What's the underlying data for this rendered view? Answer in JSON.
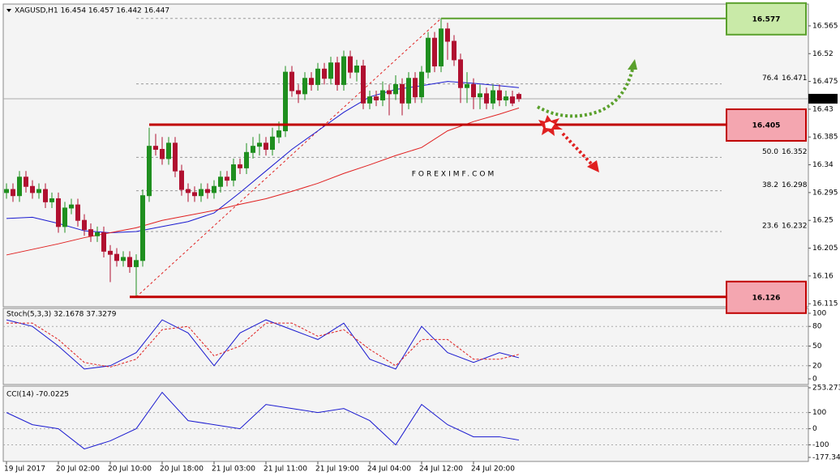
{
  "chart_data": [
    {
      "type": "candlestick",
      "title": "XAGUSD,H1 16.454 16.457 16.442 16.447",
      "categories": [
        "19 Jul 2017",
        null,
        null,
        null,
        null,
        null,
        null,
        null,
        "20 Jul 02:00",
        null,
        null,
        null,
        null,
        null,
        null,
        null,
        "20 Jul 10:00",
        null,
        null,
        null,
        null,
        null,
        null,
        null,
        "20 Jul 18:00",
        null,
        null,
        null,
        null,
        null,
        null,
        null,
        "21 Jul 03:00",
        null,
        null,
        null,
        null,
        null,
        null,
        null,
        "21 Jul 11:00",
        null,
        null,
        null,
        null,
        null,
        null,
        null,
        "21 Jul 19:00",
        null,
        null,
        null,
        null,
        null,
        null,
        null,
        "24 Jul 04:00",
        null,
        null,
        null,
        null,
        null,
        null,
        null,
        "24 Jul 12:00",
        null,
        null,
        null,
        null,
        null,
        null,
        null,
        "24 Jul 20:00",
        null,
        null,
        null,
        null,
        null,
        null,
        null
      ],
      "open": [
        16.295,
        16.3,
        16.29,
        16.32,
        16.305,
        16.295,
        16.3,
        16.28,
        16.285,
        16.24,
        16.27,
        16.275,
        16.25,
        16.235,
        16.225,
        16.23,
        16.2,
        16.195,
        16.185,
        16.19,
        16.175,
        16.185,
        16.29,
        16.37,
        16.365,
        16.35,
        16.375,
        16.33,
        16.3,
        16.295,
        16.29,
        16.3,
        16.295,
        16.305,
        16.32,
        16.315,
        16.34,
        16.335,
        16.36,
        16.37,
        16.375,
        16.365,
        16.385,
        16.395,
        16.49,
        16.46,
        16.455,
        16.48,
        16.47,
        16.495,
        16.48,
        16.505,
        16.47,
        16.515,
        16.49,
        16.5,
        16.44,
        16.45,
        16.445,
        16.46,
        16.455,
        16.47,
        16.44,
        16.48,
        16.45,
        16.49,
        16.545,
        16.5,
        16.56,
        16.54,
        16.51,
        16.465,
        16.47,
        16.45,
        16.455,
        16.44,
        16.46,
        16.445,
        16.45,
        16.454
      ],
      "high": [
        16.31,
        16.31,
        16.33,
        16.33,
        16.315,
        16.31,
        16.31,
        16.295,
        16.295,
        16.28,
        16.285,
        16.285,
        16.26,
        16.245,
        16.24,
        16.24,
        16.21,
        16.205,
        16.2,
        16.2,
        16.195,
        16.3,
        16.4,
        16.39,
        16.385,
        16.385,
        16.385,
        16.34,
        16.31,
        16.305,
        16.31,
        16.31,
        16.315,
        16.33,
        16.33,
        16.35,
        16.35,
        16.375,
        16.385,
        16.39,
        16.385,
        16.4,
        16.41,
        16.5,
        16.5,
        16.47,
        16.49,
        16.49,
        16.505,
        16.505,
        16.515,
        16.515,
        16.525,
        16.525,
        16.51,
        16.51,
        16.46,
        16.46,
        16.475,
        16.47,
        16.485,
        16.48,
        16.49,
        16.49,
        16.5,
        16.555,
        16.555,
        16.577,
        16.57,
        16.55,
        16.52,
        16.49,
        16.48,
        16.47,
        16.465,
        16.47,
        16.47,
        16.46,
        16.46,
        16.457
      ],
      "low": [
        16.285,
        16.28,
        16.28,
        16.295,
        16.285,
        16.285,
        16.27,
        16.27,
        16.23,
        16.23,
        16.26,
        16.24,
        16.225,
        16.215,
        16.215,
        16.19,
        16.15,
        16.175,
        16.175,
        16.165,
        16.126,
        16.175,
        16.28,
        16.355,
        16.34,
        16.34,
        16.32,
        16.29,
        16.28,
        16.28,
        16.28,
        16.285,
        16.285,
        16.295,
        16.305,
        16.305,
        16.325,
        16.325,
        16.35,
        16.355,
        16.355,
        16.355,
        16.375,
        16.385,
        16.45,
        16.44,
        16.445,
        16.46,
        16.46,
        16.47,
        16.47,
        16.46,
        16.46,
        16.48,
        16.475,
        16.43,
        16.43,
        16.435,
        16.435,
        16.42,
        16.445,
        16.42,
        16.43,
        16.44,
        16.44,
        16.48,
        16.49,
        16.49,
        16.51,
        16.5,
        16.44,
        16.44,
        16.43,
        16.43,
        16.43,
        16.43,
        16.435,
        16.435,
        16.435,
        16.442
      ],
      "close": [
        16.3,
        16.29,
        16.32,
        16.305,
        16.295,
        16.3,
        16.28,
        16.285,
        16.24,
        16.27,
        16.275,
        16.25,
        16.235,
        16.225,
        16.23,
        16.2,
        16.195,
        16.185,
        16.19,
        16.175,
        16.185,
        16.29,
        16.37,
        16.365,
        16.35,
        16.375,
        16.33,
        16.3,
        16.295,
        16.29,
        16.3,
        16.295,
        16.305,
        16.32,
        16.315,
        16.34,
        16.335,
        16.36,
        16.37,
        16.375,
        16.365,
        16.385,
        16.395,
        16.49,
        16.46,
        16.455,
        16.48,
        16.47,
        16.495,
        16.48,
        16.505,
        16.47,
        16.515,
        16.49,
        16.5,
        16.44,
        16.45,
        16.445,
        16.46,
        16.455,
        16.47,
        16.44,
        16.48,
        16.45,
        16.49,
        16.545,
        16.5,
        16.56,
        16.54,
        16.51,
        16.465,
        16.47,
        16.45,
        16.455,
        16.44,
        16.46,
        16.445,
        16.45,
        16.44,
        16.447
      ],
      "bull_color": "#1f8f1f",
      "bear_color": "#b01030",
      "x": [
        0,
        4,
        8,
        12,
        16,
        20,
        24,
        28,
        32,
        36,
        40,
        44,
        48,
        52,
        56,
        60,
        64,
        68,
        72,
        76,
        79
      ],
      "series": [
        {
          "color": "#1a1ad0",
          "values": [
            16.253,
            16.255,
            16.245,
            16.233,
            16.23,
            16.232,
            16.24,
            16.248,
            16.262,
            16.295,
            16.33,
            16.365,
            16.395,
            16.425,
            16.45,
            16.462,
            16.468,
            16.475,
            16.472,
            16.468,
            16.465
          ]
        },
        {
          "color": "#e02020",
          "values": [
            16.194,
            16.203,
            16.212,
            16.222,
            16.23,
            16.238,
            16.25,
            16.258,
            16.266,
            16.276,
            16.285,
            16.297,
            16.31,
            16.326,
            16.34,
            16.355,
            16.368,
            16.395,
            16.41,
            16.422,
            16.432
          ]
        }
      ],
      "ylim": [
        16.11,
        16.599
      ],
      "yticks": [
        16.565,
        16.52,
        16.475,
        16.43,
        16.385,
        16.34,
        16.295,
        16.25,
        16.205,
        16.16,
        16.115
      ],
      "last_price": 16.447,
      "levels": [
        {
          "value": 16.577,
          "color": "#5aa02c",
          "fill": "#c9eaa8"
        },
        {
          "value": 16.405,
          "color": "#c00000",
          "fill": "#f4a6b0"
        },
        {
          "value": 16.126,
          "color": "#c00000",
          "fill": "#f4a6b0"
        }
      ],
      "fibonacci": [
        {
          "level": 76.4,
          "value": 16.471
        },
        {
          "level": {
            "value": 50,
            "label": "50.0"
          },
          "value": 16.352
        },
        {
          "level": 38.2,
          "value": 16.298
        },
        {
          "level": 23.6,
          "value": 16.232
        }
      ],
      "watermark": "FOREXIMF.COM"
    },
    {
      "type": "line",
      "title": "Stoch(5,3,3) 32.1678 37.3279",
      "x": [
        0,
        4,
        8,
        12,
        16,
        20,
        24,
        28,
        32,
        36,
        40,
        44,
        48,
        52,
        56,
        60,
        64,
        68,
        72,
        76,
        79
      ],
      "series": [
        {
          "color": "#1a1ad0",
          "values": [
            90,
            80,
            50,
            15,
            20,
            40,
            90,
            70,
            20,
            70,
            90,
            75,
            60,
            85,
            30,
            15,
            80,
            40,
            25,
            40,
            32.1678
          ]
        },
        {
          "color": "#e02020",
          "dashed": true,
          "values": [
            85,
            85,
            60,
            25,
            18,
            30,
            75,
            80,
            35,
            50,
            85,
            85,
            65,
            75,
            45,
            20,
            60,
            60,
            30,
            30,
            37.3279
          ]
        }
      ],
      "ylim": [
        0,
        100
      ],
      "yticks": [
        100,
        80,
        50,
        20,
        0
      ]
    },
    {
      "type": "line",
      "title": "CCI(14) -70.0225",
      "x": [
        0,
        4,
        8,
        12,
        16,
        20,
        24,
        28,
        32,
        36,
        40,
        44,
        48,
        52,
        56,
        60,
        64,
        68,
        72,
        76,
        79
      ],
      "series": [
        {
          "color": "#1a1ad0",
          "values": [
            100,
            25,
            0,
            -125,
            -75,
            0,
            225,
            50,
            25,
            0,
            150,
            125,
            100,
            125,
            50,
            -100,
            150,
            25,
            -50,
            -50,
            -70.0225
          ]
        }
      ],
      "ylim": [
        -177.341,
        253.2736
      ],
      "yticks": [
        253.2736,
        100,
        0,
        -100,
        -177.341
      ]
    }
  ]
}
